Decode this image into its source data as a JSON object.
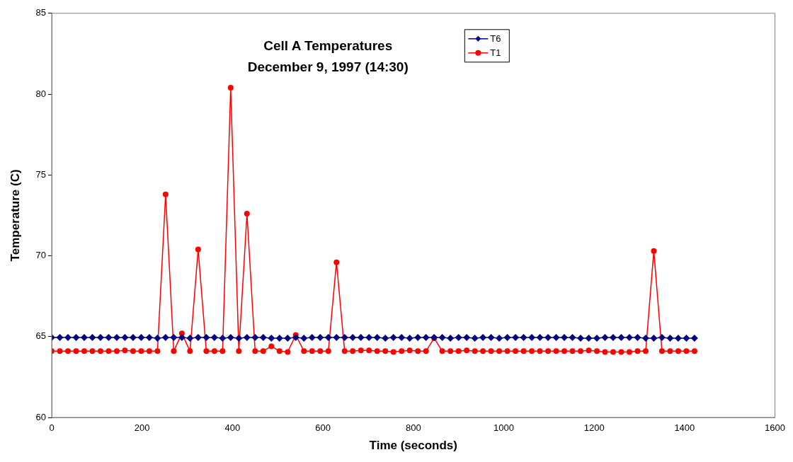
{
  "chart_data": {
    "type": "line",
    "title": "Cell A Temperatures",
    "subtitle": "December 9, 1997 (14:30)",
    "xlabel": "Time (seconds)",
    "ylabel": "Temperature (C)",
    "x": [
      0,
      18,
      36,
      54,
      72,
      90,
      108,
      126,
      144,
      162,
      180,
      198,
      216,
      234,
      252,
      270,
      288,
      306,
      324,
      342,
      360,
      378,
      396,
      414,
      432,
      450,
      468,
      486,
      504,
      522,
      540,
      558,
      576,
      594,
      612,
      630,
      648,
      666,
      684,
      702,
      720,
      738,
      756,
      774,
      792,
      810,
      828,
      846,
      864,
      882,
      900,
      918,
      936,
      954,
      972,
      990,
      1008,
      1026,
      1044,
      1062,
      1080,
      1098,
      1116,
      1134,
      1152,
      1170,
      1188,
      1206,
      1224,
      1242,
      1260,
      1278,
      1296,
      1314,
      1332,
      1350,
      1368,
      1386,
      1404,
      1422
    ],
    "series": [
      {
        "name": "T6",
        "color": "#000080",
        "marker": "diamond",
        "values": [
          64.95,
          64.95,
          64.95,
          64.95,
          64.95,
          64.95,
          64.95,
          64.95,
          64.95,
          64.95,
          64.95,
          64.95,
          64.95,
          64.9,
          64.95,
          64.95,
          64.95,
          64.9,
          64.95,
          64.95,
          64.95,
          64.9,
          64.95,
          64.9,
          64.95,
          64.95,
          64.95,
          64.9,
          64.9,
          64.9,
          64.95,
          64.9,
          64.95,
          64.95,
          64.95,
          64.95,
          64.95,
          64.95,
          64.95,
          64.95,
          64.95,
          64.9,
          64.95,
          64.95,
          64.9,
          64.95,
          64.95,
          64.95,
          64.95,
          64.9,
          64.95,
          64.95,
          64.9,
          64.95,
          64.95,
          64.9,
          64.95,
          64.95,
          64.95,
          64.95,
          64.95,
          64.95,
          64.95,
          64.95,
          64.95,
          64.9,
          64.9,
          64.9,
          64.95,
          64.95,
          64.95,
          64.95,
          64.95,
          64.9,
          64.9,
          64.95,
          64.9,
          64.9,
          64.9,
          64.9
        ]
      },
      {
        "name": "T1",
        "color": "#ff0000",
        "marker": "circle",
        "values": [
          64.1,
          64.1,
          64.1,
          64.1,
          64.1,
          64.1,
          64.1,
          64.1,
          64.1,
          64.15,
          64.1,
          64.1,
          64.1,
          64.1,
          73.8,
          64.1,
          65.2,
          64.1,
          70.4,
          64.1,
          64.1,
          64.1,
          80.4,
          64.1,
          72.6,
          64.1,
          64.1,
          64.4,
          64.1,
          64.05,
          65.1,
          64.1,
          64.1,
          64.1,
          64.1,
          69.6,
          64.1,
          64.1,
          64.15,
          64.15,
          64.1,
          64.1,
          64.05,
          64.1,
          64.15,
          64.1,
          64.1,
          64.9,
          64.1,
          64.1,
          64.1,
          64.15,
          64.1,
          64.1,
          64.1,
          64.1,
          64.1,
          64.1,
          64.1,
          64.1,
          64.1,
          64.1,
          64.1,
          64.1,
          64.1,
          64.1,
          64.15,
          64.1,
          64.05,
          64.05,
          64.05,
          64.05,
          64.1,
          64.1,
          70.3,
          64.1,
          64.1,
          64.1,
          64.1,
          64.1
        ]
      }
    ],
    "xlim": [
      0,
      1600
    ],
    "xticks": [
      0,
      200,
      400,
      600,
      800,
      1000,
      1200,
      1400,
      1600
    ],
    "ylim": [
      60,
      85
    ],
    "yticks": [
      60,
      65,
      70,
      75,
      80,
      85
    ],
    "grid": false,
    "legend": "top"
  }
}
